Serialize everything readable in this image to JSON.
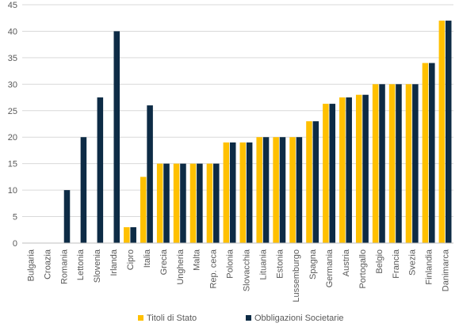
{
  "chart_data": {
    "type": "bar",
    "title": "",
    "xlabel": "",
    "ylabel": "",
    "ylim": [
      0,
      45
    ],
    "yticks": [
      0,
      5,
      10,
      15,
      20,
      25,
      30,
      35,
      40,
      45
    ],
    "grid": true,
    "legend_position": "bottom",
    "categories": [
      "Bulgaria",
      "Croazia",
      "Romania",
      "Lettonia",
      "Slovenia",
      "Irlanda",
      "Cipro",
      "Italia",
      "Grecia",
      "Ungheria",
      "Malta",
      "Rep. ceca",
      "Polonia",
      "Slovacchia",
      "Lituania",
      "Estonia",
      "Lussemburgo",
      "Spagna",
      "Germania",
      "Austria",
      "Portogallo",
      "Belgio",
      "Francia",
      "Svezia",
      "Finlandia",
      "Danimarca"
    ],
    "series": [
      {
        "name": "Titoli di Stato",
        "color": "#FFC000",
        "values": [
          0,
          0,
          0,
          0,
          0,
          0,
          3,
          12.5,
          15,
          15,
          15,
          15,
          19,
          19,
          20,
          20,
          20,
          23,
          26.3,
          27.5,
          28,
          30,
          30,
          30,
          34,
          42
        ]
      },
      {
        "name": "Obbligazioni Societarie",
        "color": "#0D2B45",
        "values": [
          0,
          0,
          10,
          20,
          27.5,
          40,
          3,
          26,
          15,
          15,
          15,
          15,
          19,
          19,
          20,
          20,
          20,
          23,
          26.3,
          27.5,
          28,
          30,
          30,
          30,
          34,
          42
        ]
      }
    ]
  }
}
